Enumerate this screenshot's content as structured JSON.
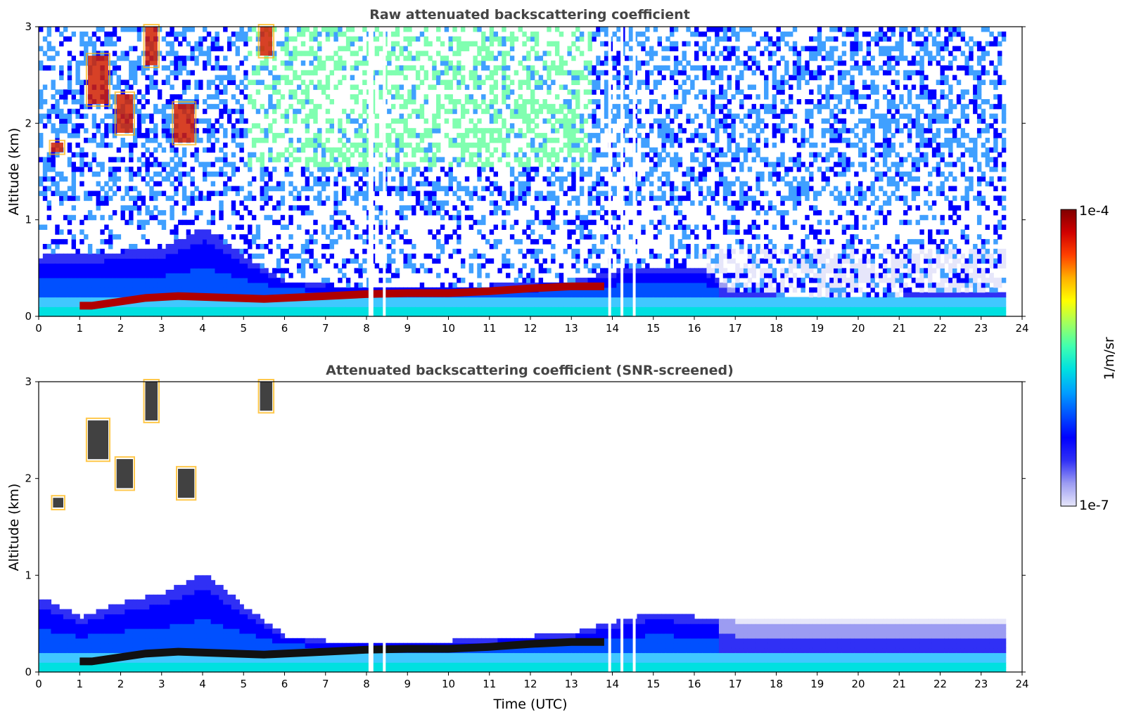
{
  "chart_data": [
    {
      "type": "heatmap",
      "title": "Raw attenuated backscattering coefficient",
      "xlabel": "",
      "ylabel": "Altitude (km)",
      "xlim": [
        0,
        24
      ],
      "ylim": [
        0,
        3
      ],
      "xticks": [
        "0",
        "1",
        "2",
        "3",
        "4",
        "5",
        "6",
        "7",
        "8",
        "9",
        "10",
        "11",
        "12",
        "13",
        "14",
        "15",
        "16",
        "17",
        "18",
        "19",
        "20",
        "21",
        "22",
        "23",
        "24"
      ],
      "yticks": [
        "0",
        "1",
        "2",
        "3"
      ],
      "data_end_hour": 23.6,
      "surface_layer_top_km": 0.2,
      "boundary_layer_top_km": [
        [
          0,
          0.6
        ],
        [
          1,
          0.62
        ],
        [
          2,
          0.65
        ],
        [
          3,
          0.7
        ],
        [
          4,
          0.9
        ],
        [
          5,
          0.6
        ],
        [
          6,
          0.35
        ],
        [
          7,
          0.3
        ],
        [
          8,
          0.28
        ],
        [
          9,
          0.28
        ],
        [
          10,
          0.28
        ],
        [
          11,
          0.3
        ],
        [
          12,
          0.32
        ],
        [
          13,
          0.35
        ],
        [
          14,
          0.45
        ],
        [
          15,
          0.5
        ],
        [
          16,
          0.5
        ],
        [
          17,
          0.25
        ],
        [
          18,
          0.2
        ],
        [
          19,
          0.2
        ],
        [
          20,
          0.2
        ],
        [
          21,
          0.2
        ],
        [
          22,
          0.22
        ],
        [
          23,
          0.25
        ]
      ],
      "aerosol_layer_km": [
        [
          1.0,
          0.1
        ],
        [
          1.3,
          0.1
        ],
        [
          2.6,
          0.18
        ],
        [
          3.4,
          0.2
        ],
        [
          5.5,
          0.17
        ],
        [
          6.0,
          0.18
        ],
        [
          7.0,
          0.2
        ],
        [
          8.0,
          0.22
        ],
        [
          9.0,
          0.23
        ],
        [
          10.0,
          0.23
        ],
        [
          11.0,
          0.25
        ],
        [
          12.0,
          0.28
        ],
        [
          13.0,
          0.3
        ],
        [
          13.8,
          0.3
        ]
      ],
      "cloud_features": [
        {
          "t0": 0.3,
          "t1": 0.6,
          "z0": 1.7,
          "z1": 1.8
        },
        {
          "t0": 1.2,
          "t1": 1.7,
          "z0": 2.2,
          "z1": 2.7
        },
        {
          "t0": 1.9,
          "t1": 2.3,
          "z0": 1.9,
          "z1": 2.3
        },
        {
          "t0": 2.6,
          "t1": 2.9,
          "z0": 2.6,
          "z1": 3.0
        },
        {
          "t0": 3.3,
          "t1": 3.8,
          "z0": 1.8,
          "z1": 2.2
        },
        {
          "t0": 5.4,
          "t1": 5.7,
          "z0": 2.7,
          "z1": 3.0
        }
      ],
      "data_gaps_hour": [
        8.05,
        8.1,
        8.4,
        13.9,
        14.2,
        14.5
      ],
      "noise_cutoff_km": null
    },
    {
      "type": "heatmap",
      "title": "Attenuated backscattering coefficient (SNR-screened)",
      "xlabel": "Time (UTC)",
      "ylabel": "Altitude (km)",
      "xlim": [
        0,
        24
      ],
      "ylim": [
        0,
        3
      ],
      "xticks": [
        "0",
        "1",
        "2",
        "3",
        "4",
        "5",
        "6",
        "7",
        "8",
        "9",
        "10",
        "11",
        "12",
        "13",
        "14",
        "15",
        "16",
        "17",
        "18",
        "19",
        "20",
        "21",
        "22",
        "23",
        "24"
      ],
      "yticks": [
        "0",
        "1",
        "2",
        "3"
      ],
      "data_end_hour": 23.6,
      "surface_layer_top_km": 0.2,
      "boundary_layer_top_km": [
        [
          0,
          0.75
        ],
        [
          1,
          0.55
        ],
        [
          2,
          0.7
        ],
        [
          3,
          0.8
        ],
        [
          4,
          1.0
        ],
        [
          5,
          0.65
        ],
        [
          6,
          0.35
        ],
        [
          7,
          0.3
        ],
        [
          8,
          0.3
        ],
        [
          9,
          0.3
        ],
        [
          10,
          0.3
        ],
        [
          11,
          0.32
        ],
        [
          12,
          0.35
        ],
        [
          13,
          0.38
        ],
        [
          14,
          0.5
        ],
        [
          15,
          0.6
        ],
        [
          16,
          0.55
        ],
        [
          17,
          0.5
        ],
        [
          18,
          0.5
        ],
        [
          19,
          0.5
        ],
        [
          20,
          0.5
        ],
        [
          21,
          0.5
        ],
        [
          22,
          0.5
        ],
        [
          23,
          0.5
        ]
      ],
      "aerosol_layer_km": [
        [
          1.0,
          0.1
        ],
        [
          1.3,
          0.1
        ],
        [
          2.6,
          0.18
        ],
        [
          3.4,
          0.2
        ],
        [
          5.5,
          0.17
        ],
        [
          6.0,
          0.18
        ],
        [
          7.0,
          0.2
        ],
        [
          8.0,
          0.22
        ],
        [
          9.0,
          0.23
        ],
        [
          10.0,
          0.23
        ],
        [
          11.0,
          0.25
        ],
        [
          12.0,
          0.28
        ],
        [
          13.0,
          0.3
        ],
        [
          13.8,
          0.3
        ]
      ],
      "cloud_features": [
        {
          "t0": 0.35,
          "t1": 0.6,
          "z0": 1.7,
          "z1": 1.8
        },
        {
          "t0": 1.2,
          "t1": 1.7,
          "z0": 2.2,
          "z1": 2.6
        },
        {
          "t0": 1.9,
          "t1": 2.3,
          "z0": 1.9,
          "z1": 2.2
        },
        {
          "t0": 2.6,
          "t1": 2.9,
          "z0": 2.6,
          "z1": 3.0
        },
        {
          "t0": 3.4,
          "t1": 3.8,
          "z0": 1.8,
          "z1": 2.1
        },
        {
          "t0": 5.4,
          "t1": 5.7,
          "z0": 2.7,
          "z1": 3.0
        }
      ],
      "data_gaps_hour": [
        8.05,
        8.1,
        8.4,
        13.9,
        14.2,
        14.5
      ],
      "noise_cutoff_km": 0.8
    }
  ],
  "colorbar": {
    "label": "1/m/sr",
    "max_label": "1e-4",
    "min_label": "1e-7",
    "min": 1e-07,
    "max": 0.0001,
    "stops": [
      "#e6e6fa",
      "#9c9cf2",
      "#3030f5",
      "#0000ff",
      "#0050ff",
      "#00a0ff",
      "#00e0e0",
      "#40ffb0",
      "#a0ff60",
      "#ffff00",
      "#ffb000",
      "#ff4000",
      "#d00000",
      "#800000"
    ]
  }
}
